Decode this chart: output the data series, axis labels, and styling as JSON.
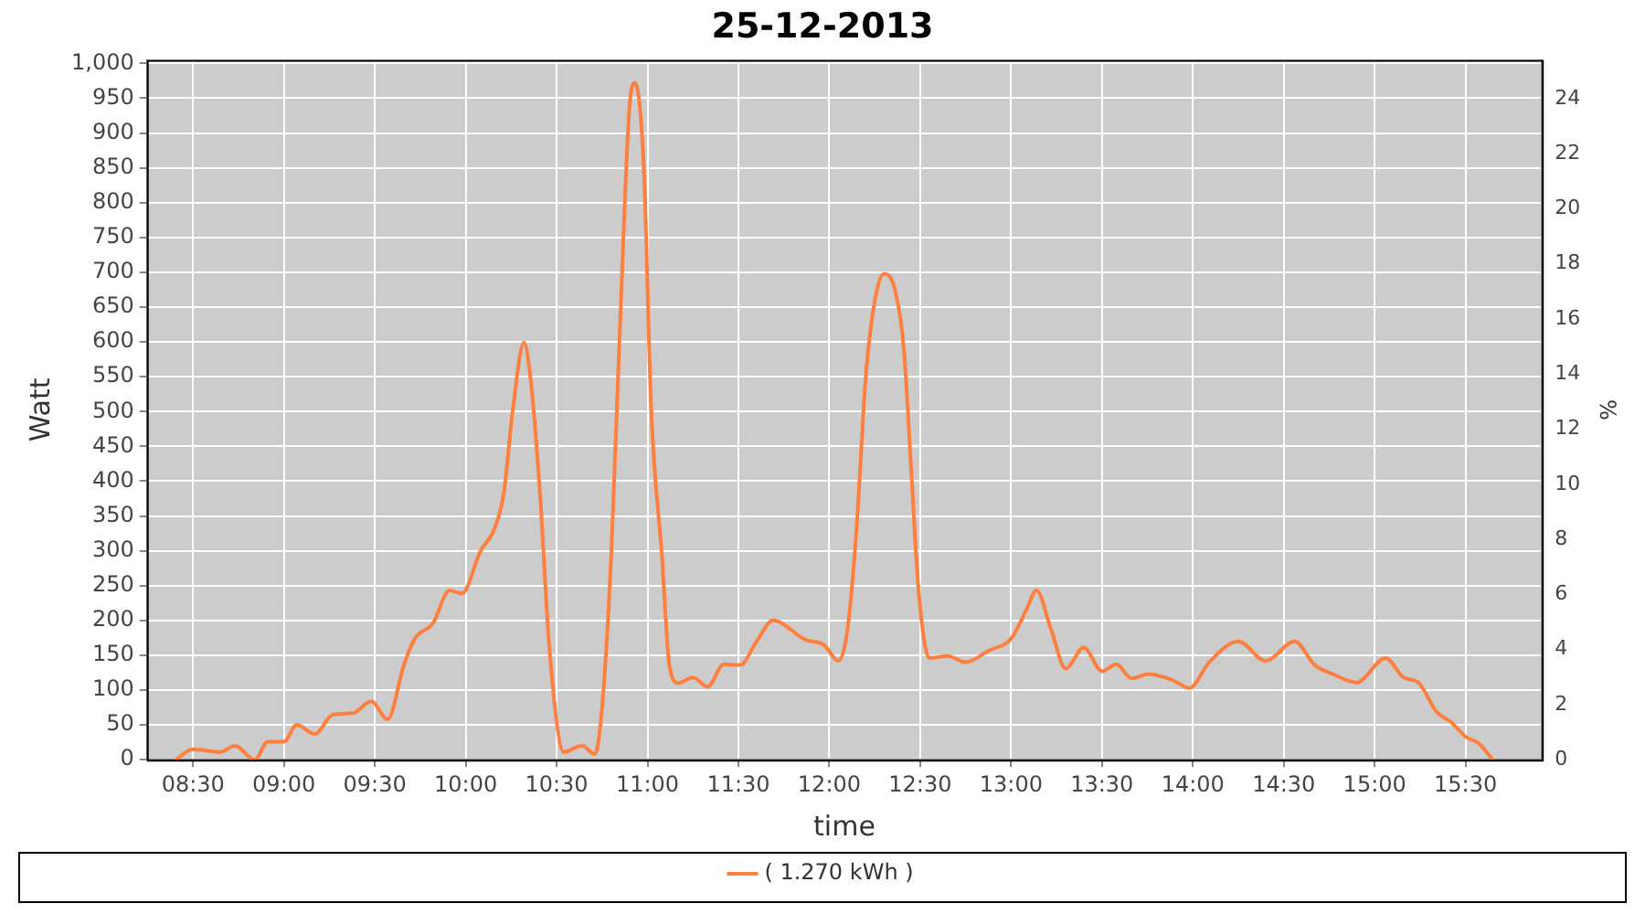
{
  "chart_data": {
    "type": "line",
    "title": "25-12-2013",
    "xlabel": "time",
    "ylabel": "Watt",
    "y2label": "%",
    "xlim": [
      8.246,
      15.92
    ],
    "xticks": [
      {
        "value": 8.5,
        "label": "08:30"
      },
      {
        "value": 9,
        "label": "09:00"
      },
      {
        "value": 9.5,
        "label": "09:30"
      },
      {
        "value": 10,
        "label": "10:00"
      },
      {
        "value": 10.5,
        "label": "10:30"
      },
      {
        "value": 11,
        "label": "11:00"
      },
      {
        "value": 11.5,
        "label": "11:30"
      },
      {
        "value": 12,
        "label": "12:00"
      },
      {
        "value": 12.5,
        "label": "12:30"
      },
      {
        "value": 13,
        "label": "13:00"
      },
      {
        "value": 13.5,
        "label": "13:30"
      },
      {
        "value": 14,
        "label": "14:00"
      },
      {
        "value": 14.5,
        "label": "14:30"
      },
      {
        "value": 15,
        "label": "15:00"
      },
      {
        "value": 15.5,
        "label": "15:30"
      }
    ],
    "ylim": [
      0,
      1005
    ],
    "yticks": [
      0,
      50,
      100,
      150,
      200,
      250,
      300,
      350,
      400,
      450,
      500,
      550,
      600,
      650,
      700,
      750,
      800,
      850,
      900,
      950,
      {
        "value": 1000,
        "label": "1,000"
      }
    ],
    "y2lim": [
      0,
      25.4
    ],
    "y2ticks": [
      0,
      2,
      4,
      6,
      8,
      10,
      12,
      14,
      16,
      18,
      20,
      22,
      24
    ],
    "grid": true,
    "legend": "bottom",
    "marker": "none",
    "line_style": "solid",
    "series": [
      {
        "name": "( 1.270 kWh )",
        "color": "#ff7f3f",
        "x": [
          8.405,
          8.5,
          8.65,
          8.73,
          8.84,
          8.91,
          9.0,
          9.07,
          9.17,
          9.27,
          9.38,
          9.48,
          9.57,
          9.66,
          9.72,
          9.82,
          9.91,
          9.98,
          10.08,
          10.16,
          10.21,
          10.26,
          10.32,
          10.36,
          10.41,
          10.46,
          10.54,
          10.64,
          10.71,
          10.75,
          10.8,
          10.85,
          10.9,
          10.93,
          10.98,
          11.02,
          11.08,
          11.12,
          11.17,
          11.25,
          11.33,
          11.42,
          11.51,
          11.6,
          11.69,
          11.87,
          11.97,
          12.05,
          12.1,
          12.15,
          12.2,
          12.25,
          12.3,
          12.36,
          12.41,
          12.45,
          12.49,
          12.55,
          12.65,
          12.75,
          12.88,
          13.0,
          13.08,
          13.14,
          13.22,
          13.3,
          13.4,
          13.5,
          13.58,
          13.66,
          13.76,
          13.89,
          13.98,
          14.09,
          14.25,
          14.4,
          14.56,
          14.67,
          14.77,
          14.9,
          15.06,
          15.16,
          15.24,
          15.34,
          15.42,
          15.5,
          15.57,
          15.65
        ],
        "values": [
          0,
          15,
          11,
          20,
          0,
          26,
          26,
          50,
          37,
          65,
          67,
          84,
          58,
          136,
          174,
          196,
          243,
          239,
          299,
          333,
          384,
          505,
          599,
          539,
          376,
          161,
          11,
          20,
          8,
          75,
          291,
          633,
          934,
          972,
          848,
          505,
          290,
          136,
          110,
          118,
          105,
          137,
          136,
          170,
          200,
          172,
          165,
          142,
          187,
          333,
          548,
          659,
          698,
          676,
          590,
          419,
          247,
          146,
          149,
          140,
          157,
          174,
          213,
          243,
          187,
          131,
          161,
          127,
          137,
          117,
          123,
          114,
          103,
          140,
          170,
          142,
          170,
          136,
          123,
          111,
          146,
          118,
          111,
          69,
          54,
          33,
          24,
          0
        ]
      }
    ]
  }
}
